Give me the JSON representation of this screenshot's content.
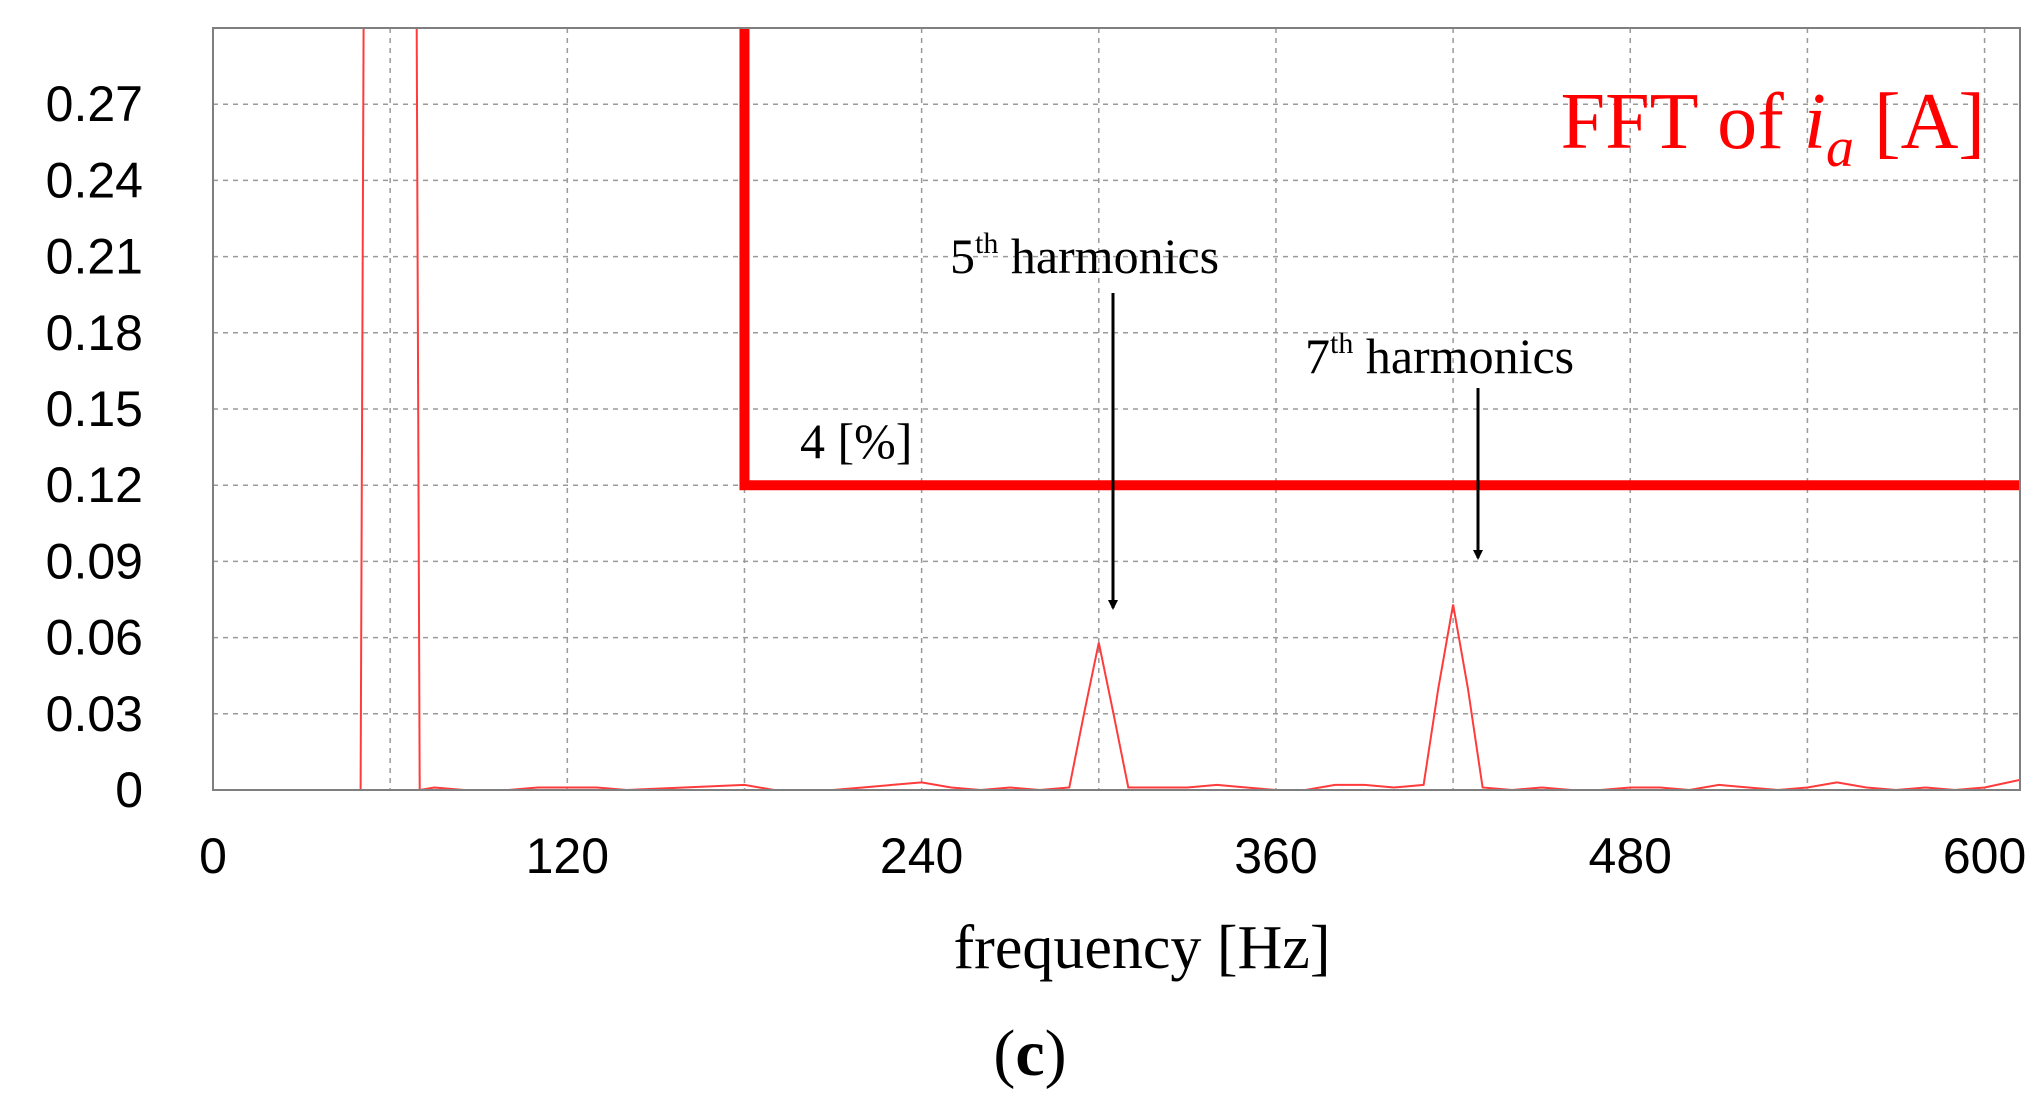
{
  "chart_data": {
    "type": "line",
    "title": "FFT of i_a [A]",
    "title_parts": {
      "prefix": "FFT of ",
      "variable": "i",
      "subscript": "a",
      "suffix": " [A]"
    },
    "xlabel": "frequency [Hz]",
    "ylabel": "",
    "xlim": [
      0,
      612
    ],
    "ylim": [
      0,
      0.3
    ],
    "xticks": [
      0,
      120,
      240,
      360,
      480,
      600
    ],
    "xtick_labels": [
      "0",
      "120",
      "240",
      "360",
      "480",
      "600"
    ],
    "yticks": [
      0,
      0.03,
      0.06,
      0.09,
      0.12,
      0.15,
      0.18,
      0.21,
      0.24,
      0.27
    ],
    "ytick_labels": [
      "0",
      "0.03",
      "0.06",
      "0.09",
      "0.12",
      "0.15",
      "0.18",
      "0.21",
      "0.24",
      "0.27"
    ],
    "grid": true,
    "series": [
      {
        "color": "#ff3b3b",
        "x": [
          20,
          30,
          50,
          51,
          60,
          69,
          70,
          75,
          85,
          100,
          110,
          130,
          140,
          180,
          190,
          200,
          210,
          220,
          230,
          240,
          250,
          260,
          270,
          280,
          290,
          295,
          300,
          305,
          310,
          320,
          330,
          340,
          350,
          360,
          370,
          380,
          390,
          400,
          410,
          415,
          420,
          425,
          430,
          440,
          450,
          460,
          470,
          480,
          490,
          500,
          510,
          520,
          530,
          540,
          550,
          560,
          570,
          580,
          590,
          600,
          612
        ],
        "y": [
          0,
          0,
          0,
          0.3,
          0.3,
          0.3,
          0,
          0.001,
          0,
          0,
          0.001,
          0.001,
          0,
          0.002,
          0,
          0,
          0,
          0.001,
          0.002,
          0.003,
          0.001,
          0,
          0.001,
          0,
          0.001,
          0.03,
          0.058,
          0.03,
          0.001,
          0.001,
          0.001,
          0.002,
          0.001,
          0,
          0,
          0.002,
          0.002,
          0.001,
          0.002,
          0.04,
          0.073,
          0.04,
          0.001,
          0,
          0.001,
          0,
          0,
          0.001,
          0.001,
          0,
          0.002,
          0.001,
          0,
          0.001,
          0.003,
          0.001,
          0,
          0.001,
          0,
          0.001,
          0.004
        ]
      }
    ],
    "threshold": {
      "label": "4 [%]",
      "color": "#ff0000",
      "value": 0.12,
      "x_start": 180,
      "x_end": 612
    },
    "annotations": [
      {
        "id": "fifth",
        "ordinal": "5",
        "sup": "th",
        "text": " harmonics",
        "x": 300,
        "y": 0.058
      },
      {
        "id": "seventh",
        "ordinal": "7",
        "sup": "th",
        "text": " harmonics",
        "x": 420,
        "y": 0.073
      }
    ],
    "panel_label": {
      "open": "(",
      "letter": "c",
      "close": ")"
    }
  }
}
